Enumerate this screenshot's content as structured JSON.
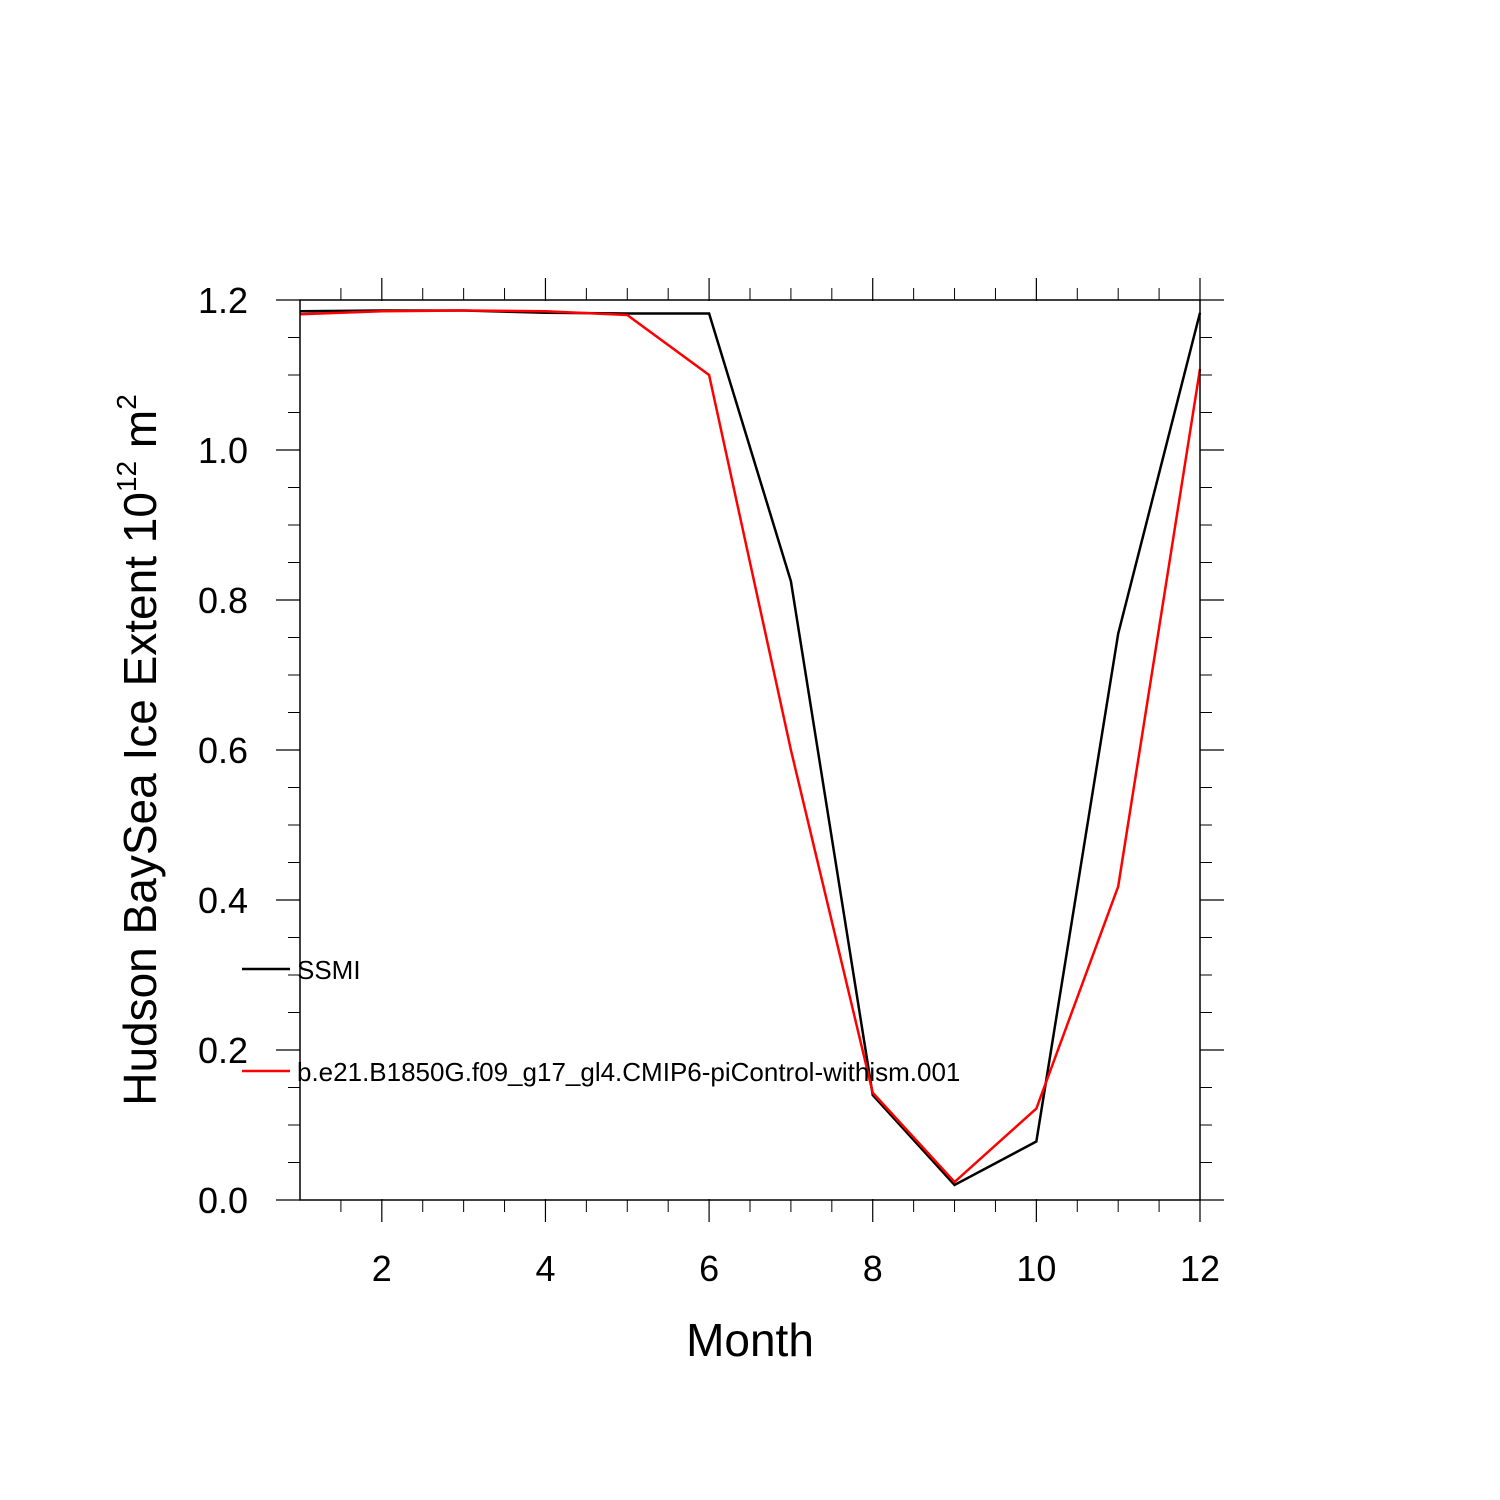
{
  "chart_data": {
    "type": "line",
    "xlabel": "Month",
    "ylabel": {
      "main": "Hudson BaySea Ice Extent 10",
      "sup1": "12",
      "mid": " m",
      "sup2": "2"
    },
    "xlim": [
      1,
      12
    ],
    "ylim": [
      0,
      1.2
    ],
    "xticks": [
      2,
      4,
      6,
      8,
      10,
      12
    ],
    "xtick_labels": [
      "2",
      "4",
      "6",
      "8",
      "10",
      "12"
    ],
    "yticks": [
      0,
      0.2,
      0.4,
      0.6,
      0.8,
      1.0,
      1.2
    ],
    "ytick_labels": [
      "0.0",
      "0.2",
      "0.4",
      "0.6",
      "0.8",
      "1.0",
      "1.2"
    ],
    "grid": false,
    "legend_position": "left-inside",
    "x": [
      1,
      2,
      3,
      4,
      5,
      6,
      7,
      8,
      9,
      10,
      11,
      12
    ],
    "series": [
      {
        "name": "SSMI",
        "color": "#000000",
        "values": [
          1.185,
          1.186,
          1.186,
          1.183,
          1.182,
          1.182,
          0.825,
          0.14,
          0.02,
          0.078,
          0.755,
          1.183
        ]
      },
      {
        "name": "b.e21.B1850G.f09_g17_gl4.CMIP6-piControl-withism.001",
        "color": "#ff0000",
        "values": [
          1.181,
          1.185,
          1.186,
          1.185,
          1.18,
          1.1,
          0.6,
          0.143,
          0.024,
          0.122,
          0.418,
          1.108
        ]
      }
    ]
  }
}
